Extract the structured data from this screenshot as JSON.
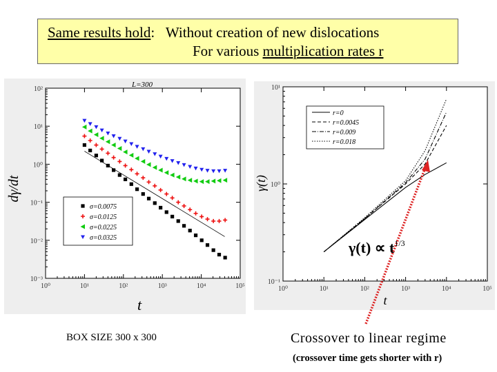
{
  "header": {
    "lead_text": "Same results hold",
    "lead_colon": ":",
    "line1": "Without creation of new dislocations",
    "line2_prefix": "For various ",
    "line2_underlined": "multiplication rates r"
  },
  "captions": {
    "left": "BOX SIZE 300 x 300",
    "right_main": "Crossover to linear regime",
    "right_sub": "(crossover time gets shorter with r)"
  },
  "annotation": {
    "formula_lhs": "γ(t) ∝ t",
    "formula_exponent": "1/3"
  },
  "colors": {
    "title_bg": "#ffffa8",
    "panel_bg": "#eeeeee",
    "arrow": "#dd2222",
    "series_black": "#000000",
    "series_red": "#ee1111",
    "series_green": "#11cc11",
    "series_blue": "#2222ee"
  },
  "chart_data": [
    {
      "type": "scatter",
      "title": "L=300",
      "xlabel": "t",
      "ylabel": "dγ/dt",
      "xscale": "log",
      "yscale": "log",
      "xlim": [
        1,
        100000
      ],
      "ylim": [
        0.001,
        100
      ],
      "x_ticks": [
        "10⁰",
        "10¹",
        "10²",
        "10³",
        "10⁴",
        "10⁵"
      ],
      "y_ticks": [
        "10⁻³",
        "10⁻²",
        "10⁻¹",
        "10⁰",
        "10¹",
        "10²"
      ],
      "legend_position": "bottom-left",
      "series": [
        {
          "name": "σ=0.0075",
          "color": "#000000",
          "marker": "square",
          "x": [
            10,
            14,
            20,
            28,
            40,
            56,
            80,
            112,
            160,
            224,
            320,
            448,
            640,
            900,
            1280,
            1800,
            2560,
            3600,
            5120,
            7200,
            10240,
            14400,
            20480,
            28800,
            40960
          ],
          "y": [
            3.2,
            2.3,
            1.7,
            1.25,
            0.92,
            0.7,
            0.52,
            0.4,
            0.3,
            0.22,
            0.165,
            0.125,
            0.095,
            0.072,
            0.055,
            0.042,
            0.032,
            0.024,
            0.018,
            0.0135,
            0.01,
            0.0075,
            0.0055,
            0.0042,
            0.0035
          ]
        },
        {
          "name": "σ=0.0125",
          "color": "#ee1111",
          "marker": "plus",
          "x": [
            10,
            14,
            20,
            28,
            40,
            56,
            80,
            112,
            160,
            224,
            320,
            448,
            640,
            900,
            1280,
            1800,
            2560,
            3600,
            5120,
            7200,
            10240,
            14400,
            20480,
            28800,
            40960
          ],
          "y": [
            5.5,
            4.2,
            3.2,
            2.5,
            1.95,
            1.5,
            1.18,
            0.92,
            0.72,
            0.56,
            0.44,
            0.34,
            0.27,
            0.21,
            0.165,
            0.13,
            0.1,
            0.08,
            0.064,
            0.051,
            0.042,
            0.036,
            0.032,
            0.032,
            0.034
          ]
        },
        {
          "name": "σ=0.0225",
          "color": "#11cc11",
          "marker": "triangle-left",
          "x": [
            10,
            14,
            20,
            28,
            40,
            56,
            80,
            112,
            160,
            224,
            320,
            448,
            640,
            900,
            1280,
            1800,
            2560,
            3600,
            5120,
            7200,
            10240,
            14400,
            20480,
            28800,
            40960
          ],
          "y": [
            9.5,
            7.5,
            6,
            4.8,
            3.9,
            3.2,
            2.6,
            2.1,
            1.72,
            1.42,
            1.18,
            0.98,
            0.82,
            0.7,
            0.6,
            0.52,
            0.46,
            0.41,
            0.38,
            0.36,
            0.35,
            0.35,
            0.36,
            0.37,
            0.38
          ]
        },
        {
          "name": "σ=0.0325",
          "color": "#2222ee",
          "marker": "triangle-down",
          "x": [
            10,
            14,
            20,
            28,
            40,
            56,
            80,
            112,
            160,
            224,
            320,
            448,
            640,
            900,
            1280,
            1800,
            2560,
            3600,
            5120,
            7200,
            10240,
            14400,
            20480,
            28800,
            40960
          ],
          "y": [
            14,
            11.5,
            9.5,
            7.8,
            6.5,
            5.5,
            4.7,
            4,
            3.4,
            2.9,
            2.5,
            2.15,
            1.85,
            1.6,
            1.4,
            1.22,
            1.08,
            0.96,
            0.86,
            0.78,
            0.72,
            0.68,
            0.66,
            0.66,
            0.68
          ]
        }
      ],
      "reference_line": {
        "x": [
          10,
          40000
        ],
        "y": [
          2.2,
          0.0125
        ]
      }
    },
    {
      "type": "line",
      "xlabel": "t",
      "ylabel": "γ(t)",
      "xscale": "log",
      "yscale": "log",
      "xlim": [
        1,
        100000
      ],
      "ylim": [
        0.1,
        10
      ],
      "x_ticks": [
        "10⁰",
        "10¹",
        "10²",
        "10³",
        "10⁴",
        "10⁵"
      ],
      "y_ticks": [
        "10⁻¹",
        "10⁰",
        "10¹"
      ],
      "legend_position": "top-left",
      "series": [
        {
          "name": "r=0",
          "color": "#000000",
          "dash": "solid",
          "x": [
            10,
            100,
            1000,
            3000,
            10000
          ],
          "y": [
            0.2,
            0.43,
            0.92,
            1.25,
            1.65
          ]
        },
        {
          "name": "r=0.0045",
          "color": "#000000",
          "dash": "dashed",
          "x": [
            10,
            100,
            1000,
            3000,
            10000
          ],
          "y": [
            0.2,
            0.44,
            1.0,
            1.6,
            4.0
          ]
        },
        {
          "name": "r=0.009",
          "color": "#000000",
          "dash": "dash-dot",
          "x": [
            10,
            100,
            1000,
            3000,
            10000
          ],
          "y": [
            0.2,
            0.44,
            1.03,
            1.8,
            5.5
          ]
        },
        {
          "name": "r=0.018",
          "color": "#000000",
          "dash": "dotted",
          "x": [
            10,
            100,
            1000,
            3000,
            10000
          ],
          "y": [
            0.2,
            0.45,
            1.08,
            2.2,
            7.5
          ]
        }
      ]
    }
  ]
}
